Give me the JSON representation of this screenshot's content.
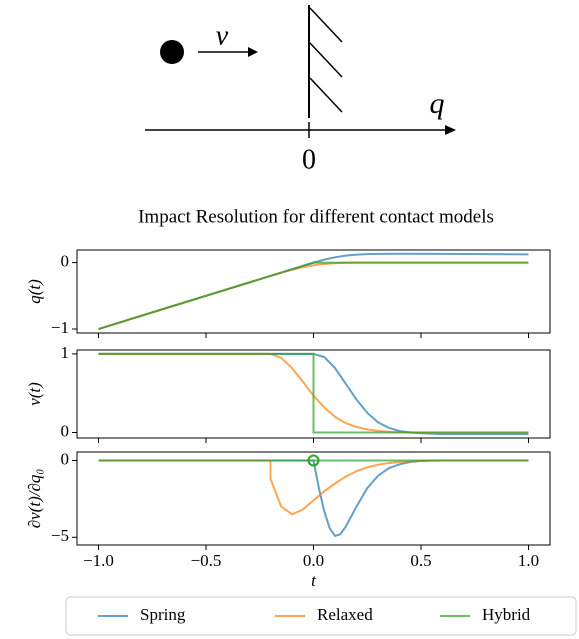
{
  "diagram": {
    "velocity_label": "v",
    "axis_label": "q",
    "origin_label": "0"
  },
  "chart_data": [
    {
      "type": "line",
      "title": "Impact Resolution for different contact models",
      "ylabel": "q(t)",
      "ylim": [
        -1.06,
        0.19
      ],
      "yticks": [
        {
          "value": -1,
          "label": "−1"
        },
        0
      ],
      "series": [
        {
          "name": "Spring",
          "color": "#1f77b4",
          "x": [
            -1,
            -0.05,
            0,
            0.05,
            0.1,
            0.15,
            0.2,
            0.25,
            0.3,
            0.4,
            0.6,
            0.8,
            1
          ],
          "values": [
            -1,
            -0.05,
            0,
            0.045,
            0.08,
            0.105,
            0.12,
            0.128,
            0.132,
            0.133,
            0.131,
            0.128,
            0.125
          ]
        },
        {
          "name": "Relaxed",
          "color": "#ff7f0e",
          "x": [
            -1,
            -0.2,
            -0.15,
            -0.1,
            -0.05,
            0,
            0.05,
            0.1,
            0.15,
            0.2,
            0.25,
            1
          ],
          "values": [
            -1,
            -0.2,
            -0.152,
            -0.108,
            -0.07,
            -0.04,
            -0.02,
            -0.009,
            -0.004,
            -0.001,
            0,
            0
          ]
        },
        {
          "name": "Hybrid",
          "color": "#2ca02c",
          "x": [
            -1,
            0,
            1
          ],
          "values": [
            -1,
            0,
            0
          ]
        }
      ]
    },
    {
      "type": "line",
      "ylabel": "v(t)",
      "ylim": [
        -0.07,
        1.05
      ],
      "yticks": [
        0,
        1
      ],
      "series": [
        {
          "color": "#1f77b4",
          "x": [
            -1,
            0,
            0.05,
            0.1,
            0.15,
            0.2,
            0.25,
            0.3,
            0.35,
            0.4,
            0.45,
            0.5,
            0.6,
            1
          ],
          "values": [
            1,
            1,
            0.96,
            0.82,
            0.62,
            0.42,
            0.25,
            0.13,
            0.06,
            0.02,
            0,
            -0.01,
            -0.02,
            -0.02
          ]
        },
        {
          "color": "#ff7f0e",
          "x": [
            -1,
            -0.2,
            -0.15,
            -0.1,
            -0.05,
            0,
            0.05,
            0.1,
            0.15,
            0.2,
            0.25,
            0.3,
            0.35,
            0.4,
            0.5,
            1
          ],
          "values": [
            1,
            1,
            0.95,
            0.82,
            0.65,
            0.47,
            0.32,
            0.2,
            0.12,
            0.07,
            0.04,
            0.02,
            0.01,
            0.005,
            0,
            0
          ]
        },
        {
          "color": "#2ca02c",
          "x": [
            -1,
            0,
            0,
            1
          ],
          "values": [
            1,
            1,
            0,
            0
          ]
        }
      ]
    },
    {
      "type": "line",
      "ylabel": "∂v(t)/∂q₀",
      "xlabel": "t",
      "xlim": [
        -1.1,
        1.1
      ],
      "xticks": [
        {
          "value": -1,
          "label": "−1.0"
        },
        {
          "value": -0.5,
          "label": "−0.5"
        },
        {
          "value": 0,
          "label": "0.0"
        },
        0.5,
        {
          "value": 1,
          "label": "1.0"
        }
      ],
      "ylim": [
        -5.5,
        0.55
      ],
      "yticks": [
        {
          "value": -5,
          "label": "−5"
        },
        0
      ],
      "series": [
        {
          "color": "#1f77b4",
          "x": [
            -1,
            0,
            0.025,
            0.05,
            0.075,
            0.1,
            0.125,
            0.15,
            0.2,
            0.25,
            0.3,
            0.35,
            0.4,
            0.45,
            0.5,
            0.55,
            1
          ],
          "values": [
            0,
            0,
            -1.8,
            -3.3,
            -4.4,
            -4.9,
            -4.8,
            -4.3,
            -3.0,
            -1.8,
            -1.0,
            -0.5,
            -0.25,
            -0.1,
            -0.03,
            0,
            0
          ]
        },
        {
          "color": "#ff7f0e",
          "x": [
            -1,
            -0.2,
            -0.2,
            -0.15,
            -0.1,
            -0.05,
            0,
            0.05,
            0.1,
            0.15,
            0.2,
            0.25,
            0.3,
            0.35,
            0.4,
            0.5,
            0.6,
            1
          ],
          "values": [
            0,
            0,
            -1.2,
            -3.0,
            -3.5,
            -3.2,
            -2.6,
            -2.0,
            -1.5,
            -1.05,
            -0.7,
            -0.45,
            -0.28,
            -0.17,
            -0.1,
            -0.03,
            0,
            0
          ]
        },
        {
          "color": "#2ca02c",
          "x": [
            -1,
            1
          ],
          "values": [
            0,
            0
          ]
        }
      ],
      "markers": [
        {
          "x": 0,
          "y": 0,
          "color": "#2ca02c"
        }
      ]
    }
  ]
}
